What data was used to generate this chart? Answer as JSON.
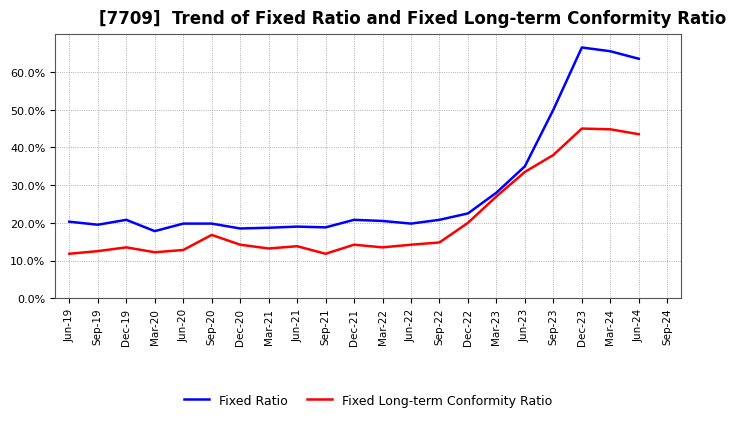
{
  "title": "[7709]  Trend of Fixed Ratio and Fixed Long-term Conformity Ratio",
  "x_labels": [
    "Jun-19",
    "Sep-19",
    "Dec-19",
    "Mar-20",
    "Jun-20",
    "Sep-20",
    "Dec-20",
    "Mar-21",
    "Jun-21",
    "Sep-21",
    "Dec-21",
    "Mar-22",
    "Jun-22",
    "Sep-22",
    "Dec-22",
    "Mar-23",
    "Jun-23",
    "Sep-23",
    "Dec-23",
    "Mar-24",
    "Jun-24",
    "Sep-24"
  ],
  "fixed_ratio": [
    20.3,
    19.5,
    20.8,
    17.8,
    19.8,
    19.8,
    18.5,
    18.7,
    19.0,
    18.8,
    20.8,
    20.5,
    19.8,
    20.8,
    22.5,
    28.0,
    35.0,
    50.0,
    66.5,
    65.5,
    63.5,
    null
  ],
  "fixed_lt_ratio": [
    11.8,
    12.5,
    13.5,
    12.2,
    12.8,
    16.8,
    14.2,
    13.2,
    13.8,
    11.8,
    14.2,
    13.5,
    14.2,
    14.8,
    20.0,
    27.0,
    33.5,
    38.0,
    45.0,
    44.8,
    43.5,
    null
  ],
  "fixed_ratio_color": "#0000ff",
  "fixed_lt_ratio_color": "#ff0000",
  "ylim": [
    0,
    70
  ],
  "yticks": [
    0,
    10,
    20,
    30,
    40,
    50,
    60
  ],
  "background_color": "#ffffff",
  "plot_bg_color": "#ffffff",
  "grid_color": "#999999",
  "legend_fixed": "Fixed Ratio",
  "legend_lt": "Fixed Long-term Conformity Ratio",
  "title_fontsize": 12,
  "line_width": 1.8
}
